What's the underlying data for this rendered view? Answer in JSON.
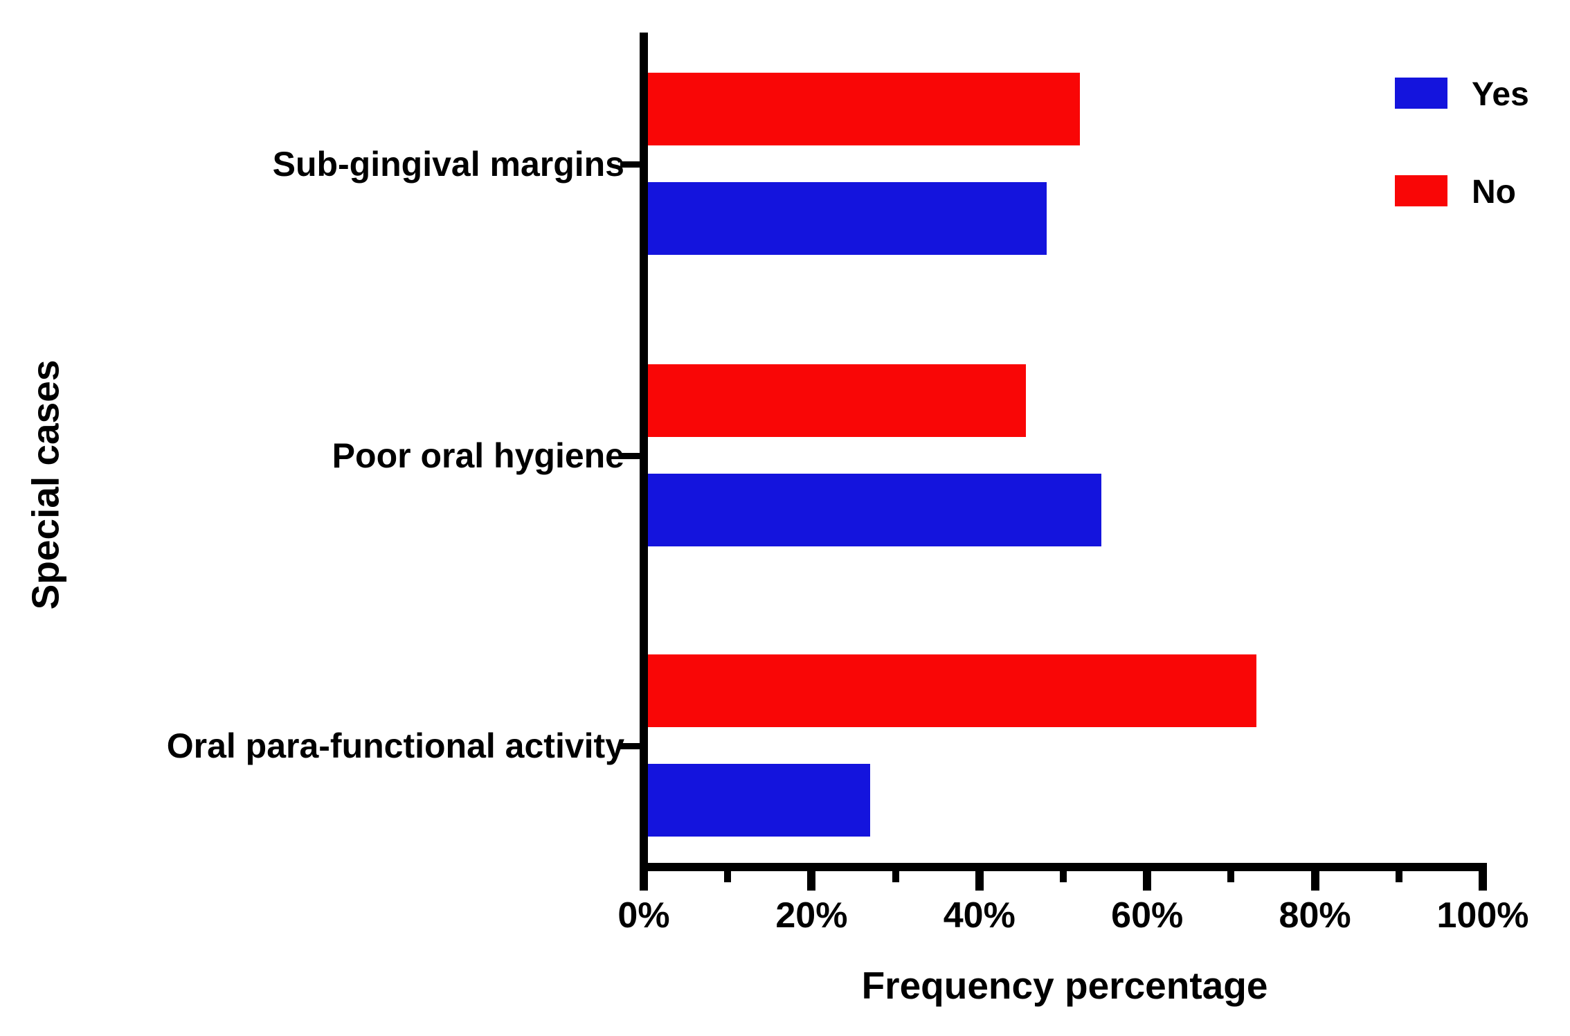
{
  "figure": {
    "background_color": "#ffffff",
    "text_color": "#000000",
    "axis_color": "#000000"
  },
  "chart_data": {
    "type": "bar",
    "orientation": "horizontal",
    "title": "",
    "xlabel": "Frequency percentage",
    "ylabel": "Special cases",
    "categories": [
      "Sub-gingival margins",
      "Poor oral hygiene",
      "Oral para-functional activity"
    ],
    "series": [
      {
        "name": "Yes",
        "color": "#1414dd",
        "values": [
          48,
          54.5,
          27
        ]
      },
      {
        "name": "No",
        "color": "#f90606",
        "values": [
          52,
          45.5,
          73
        ]
      }
    ],
    "bar_order_within_group_top_to_bottom": [
      "No",
      "Yes"
    ],
    "x_ticks": [
      {
        "value": 0,
        "label": "0%"
      },
      {
        "value": 20,
        "label": "20%"
      },
      {
        "value": 40,
        "label": "40%"
      },
      {
        "value": 60,
        "label": "60%"
      },
      {
        "value": 80,
        "label": "80%"
      },
      {
        "value": 100,
        "label": "100%"
      }
    ],
    "minor_tick_values": [
      10,
      30,
      50,
      70,
      90
    ],
    "xlim": [
      0,
      100
    ],
    "grid": false,
    "legend": {
      "position": "top-right",
      "entries": [
        "Yes",
        "No"
      ]
    }
  }
}
